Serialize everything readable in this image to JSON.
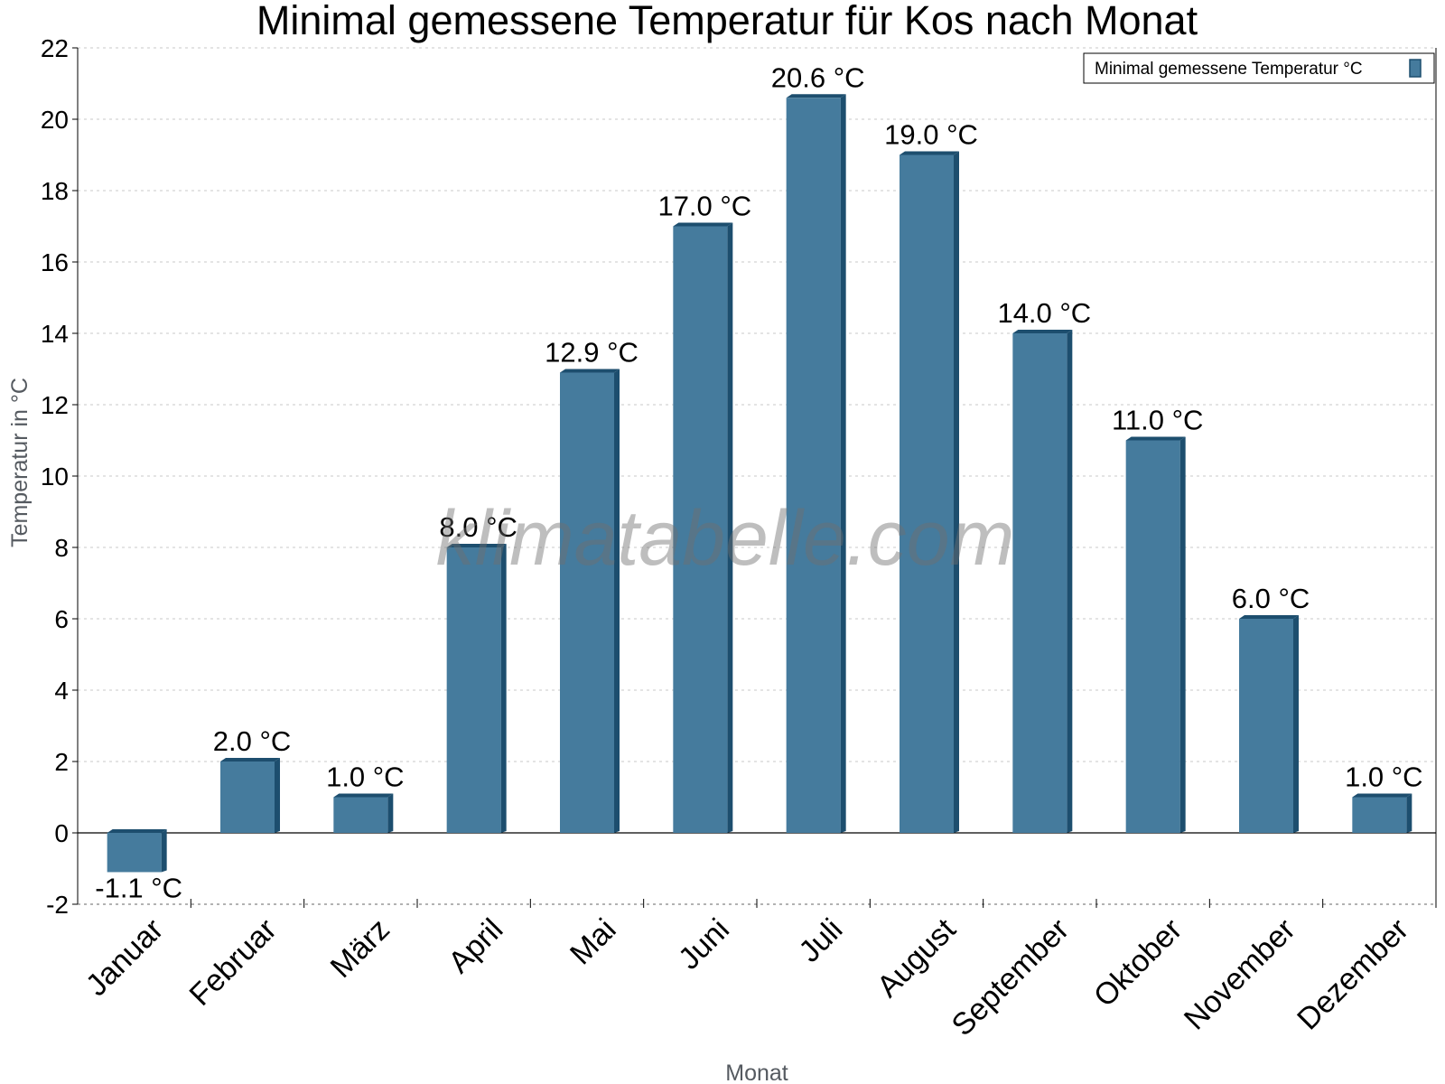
{
  "chart_data": {
    "type": "bar",
    "title": "Minimal gemessene Temperatur für Kos nach Monat",
    "xlabel": "Monat",
    "ylabel": "Temperatur in °C",
    "categories": [
      "Januar",
      "Februar",
      "März",
      "April",
      "Mai",
      "Juni",
      "Juli",
      "August",
      "September",
      "Oktober",
      "November",
      "Dezember"
    ],
    "series": [
      {
        "name": "Minimal gemessene Temperatur °C",
        "values": [
          -1.1,
          2.0,
          1.0,
          8.0,
          12.9,
          17.0,
          20.6,
          19.0,
          14.0,
          11.0,
          6.0,
          1.0
        ],
        "labels": [
          "-1.1 °C",
          "2.0 °C",
          "1.0 °C",
          "8.0 °C",
          "12.9 °C",
          "17.0 °C",
          "20.6 °C",
          "19.0 °C",
          "14.0 °C",
          "11.0 °C",
          "6.0 °C",
          "1.0 °C"
        ]
      }
    ],
    "ylim": [
      -2,
      22
    ],
    "yticks": [
      -2,
      0,
      2,
      4,
      6,
      8,
      10,
      12,
      14,
      16,
      18,
      20,
      22
    ],
    "grid": true,
    "legend_position": "top-right",
    "watermark": "klimatabelle.com",
    "colors": {
      "bar": "#457b9d",
      "bar_shade": "#1d4e6e",
      "grid": "#c8c8c8"
    }
  }
}
